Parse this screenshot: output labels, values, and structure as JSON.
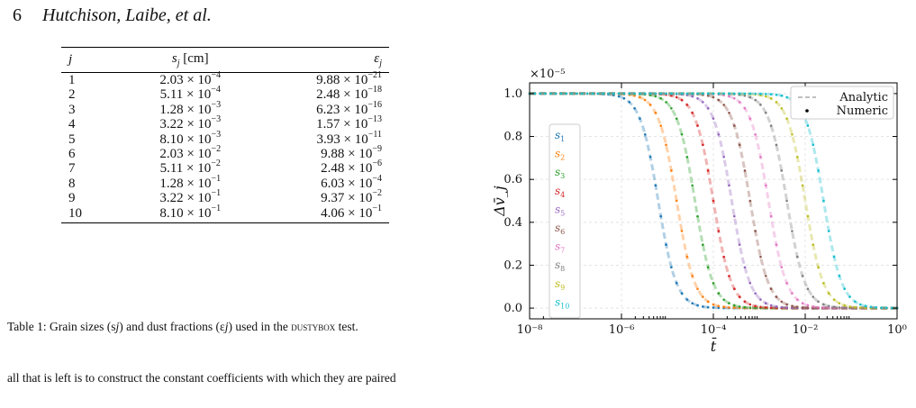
{
  "header": {
    "page_number": "6",
    "authors": "Hutchison, Laibe, et al."
  },
  "table": {
    "columns": [
      "j",
      "s_j [cm]",
      "ε_j"
    ],
    "rows": [
      {
        "j": "1",
        "s_m": "2.03",
        "s_e": "−4",
        "e_m": "9.88",
        "e_e": "−21"
      },
      {
        "j": "2",
        "s_m": "5.11",
        "s_e": "−4",
        "e_m": "2.48",
        "e_e": "−18"
      },
      {
        "j": "3",
        "s_m": "1.28",
        "s_e": "−3",
        "e_m": "6.23",
        "e_e": "−16"
      },
      {
        "j": "4",
        "s_m": "3.22",
        "s_e": "−3",
        "e_m": "1.57",
        "e_e": "−13"
      },
      {
        "j": "5",
        "s_m": "8.10",
        "s_e": "−3",
        "e_m": "3.93",
        "e_e": "−11"
      },
      {
        "j": "6",
        "s_m": "2.03",
        "s_e": "−2",
        "e_m": "9.88",
        "e_e": "−9"
      },
      {
        "j": "7",
        "s_m": "5.11",
        "s_e": "−2",
        "e_m": "2.48",
        "e_e": "−6"
      },
      {
        "j": "8",
        "s_m": "1.28",
        "s_e": "−1",
        "e_m": "6.03",
        "e_e": "−4"
      },
      {
        "j": "9",
        "s_m": "3.22",
        "s_e": "−1",
        "e_m": "9.37",
        "e_e": "−2"
      },
      {
        "j": "10",
        "s_m": "8.10",
        "s_e": "−1",
        "e_m": "4.06",
        "e_e": "−1"
      }
    ]
  },
  "caption": {
    "before": "Table 1: Grain sizes (s",
    "mid": ") and dust fractions (ε",
    "after": ") used in the ",
    "code": "dustybox",
    "end": " test."
  },
  "body_text": "all that is left is to construct the constant coefficients with which they are paired",
  "chart_data": {
    "type": "line",
    "xscale": "log",
    "xlim": [
      1e-08,
      1
    ],
    "ylim": [
      -0.05,
      1.05
    ],
    "y_multiplier_label": "×10⁻⁵",
    "xlabel": "t̄",
    "ylabel": "Δv̄_j",
    "xticks": [
      {
        "value": -8,
        "label": "10⁻⁸"
      },
      {
        "value": -6,
        "label": "10⁻⁶"
      },
      {
        "value": -4,
        "label": "10⁻⁴"
      },
      {
        "value": -2,
        "label": "10⁻²"
      },
      {
        "value": 0,
        "label": "10⁰"
      }
    ],
    "yticks": [
      {
        "value": 0.0,
        "label": "0.0"
      },
      {
        "value": 0.2,
        "label": "0.2"
      },
      {
        "value": 0.4,
        "label": "0.4"
      },
      {
        "value": 0.6,
        "label": "0.6"
      },
      {
        "value": 0.8,
        "label": "0.8"
      },
      {
        "value": 1.0,
        "label": "1.0"
      }
    ],
    "grid": true,
    "legend": {
      "placement": "top-right",
      "entries": [
        "Analytic",
        "Numeric"
      ]
    },
    "series": [
      {
        "name": "s1",
        "sub": "1",
        "half_time_log10": -5.2,
        "color": "#1f77b4"
      },
      {
        "name": "s2",
        "sub": "2",
        "half_time_log10": -4.8,
        "color": "#ff7f0e"
      },
      {
        "name": "s3",
        "sub": "3",
        "half_time_log10": -4.4,
        "color": "#2ca02c"
      },
      {
        "name": "s4",
        "sub": "4",
        "half_time_log10": -4.0,
        "color": "#d62728"
      },
      {
        "name": "s5",
        "sub": "5",
        "half_time_log10": -3.6,
        "color": "#9467bd"
      },
      {
        "name": "s6",
        "sub": "6",
        "half_time_log10": -3.2,
        "color": "#8c564b"
      },
      {
        "name": "s7",
        "sub": "7",
        "half_time_log10": -2.8,
        "color": "#e377c2"
      },
      {
        "name": "s8",
        "sub": "8",
        "half_time_log10": -2.4,
        "color": "#7f7f7f"
      },
      {
        "name": "s9",
        "sub": "9",
        "half_time_log10": -2.0,
        "color": "#bcbd22"
      },
      {
        "name": "s10",
        "sub": "10",
        "half_time_log10": -1.6,
        "color": "#17becf"
      }
    ]
  }
}
